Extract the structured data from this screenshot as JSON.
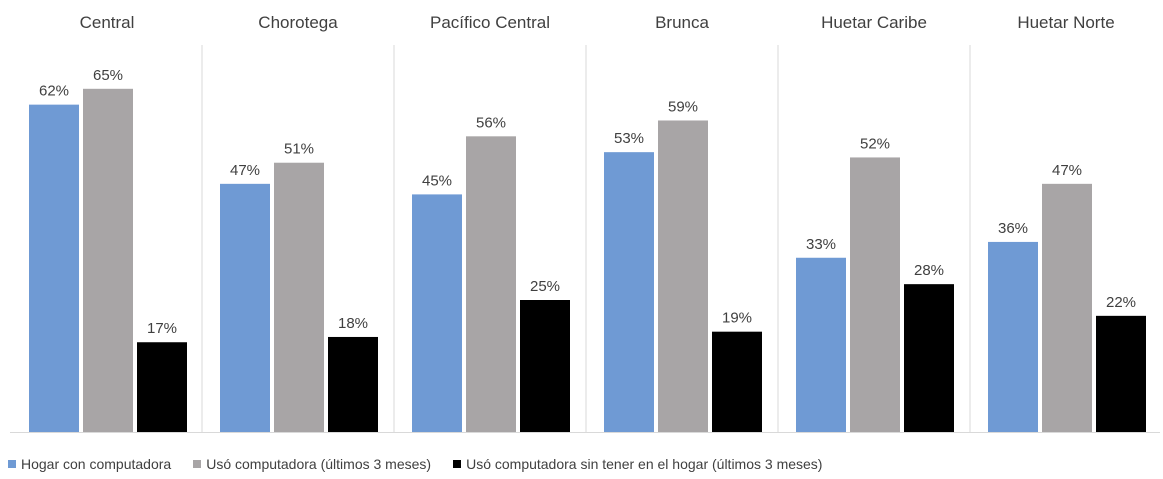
{
  "chart_data": {
    "type": "bar",
    "categories": [
      "Central",
      "Chorotega",
      "Pacífico Central",
      "Brunca",
      "Huetar Caribe",
      "Huetar Norte"
    ],
    "series": [
      {
        "name": "Hogar con computadora",
        "color": "#6f9ad4",
        "values": [
          62,
          47,
          45,
          53,
          33,
          36
        ],
        "labels": [
          "62%",
          "47%",
          "45%",
          "53%",
          "33%",
          "36%"
        ]
      },
      {
        "name": "Usó computadora (últimos 3 meses)",
        "color": "#a8a5a6",
        "values": [
          65,
          51,
          56,
          59,
          52,
          47
        ],
        "labels": [
          "65%",
          "51%",
          "56%",
          "59%",
          "52%",
          "47%"
        ]
      },
      {
        "name": "Usó computadora sin tener en el hogar (últimos 3 meses)",
        "color": "#000000",
        "values": [
          17,
          18,
          25,
          19,
          28,
          22
        ],
        "labels": [
          "17%",
          "18%",
          "25%",
          "19%",
          "28%",
          "22%"
        ]
      }
    ],
    "ylim": [
      0,
      68
    ],
    "grid": false,
    "legend_position": "bottom"
  }
}
